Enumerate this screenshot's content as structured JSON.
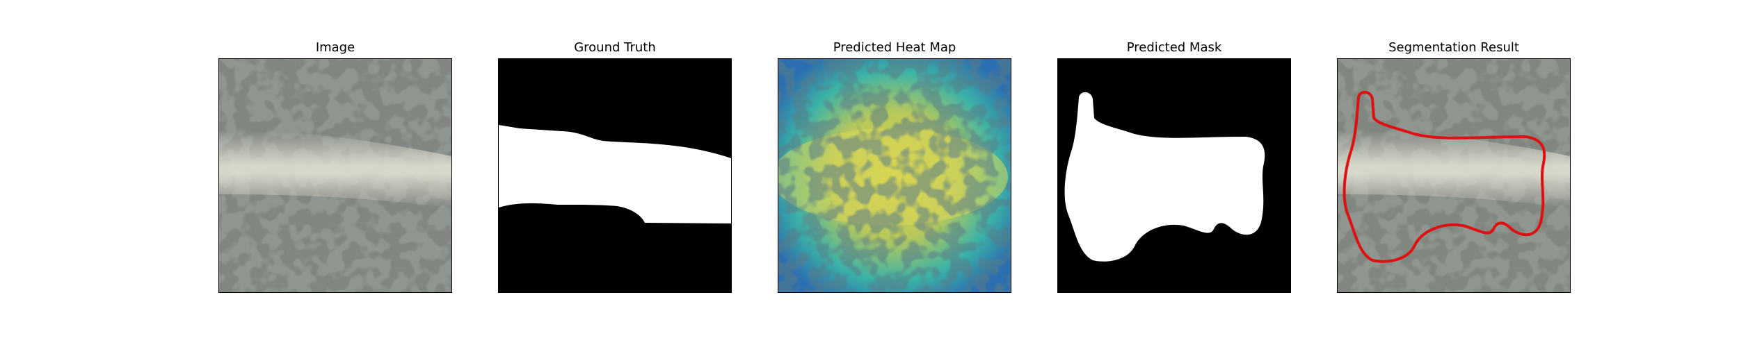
{
  "panels": [
    {
      "title": "Image"
    },
    {
      "title": "Ground Truth"
    },
    {
      "title": "Predicted Heat Map"
    },
    {
      "title": "Predicted Mask"
    },
    {
      "title": "Segmentation Result"
    }
  ],
  "colors": {
    "background": "#ffffff",
    "fabric_base": "#8f958f",
    "fabric_spots": "#3a3d3a",
    "defect_highlight": "#d8d8c8",
    "mask_foreground": "#ffffff",
    "mask_background": "#000000",
    "heat_low": "#2c6fb0",
    "heat_mid": "#3bb3a6",
    "heat_high": "#d7d44a",
    "contour": "#dd1111"
  }
}
